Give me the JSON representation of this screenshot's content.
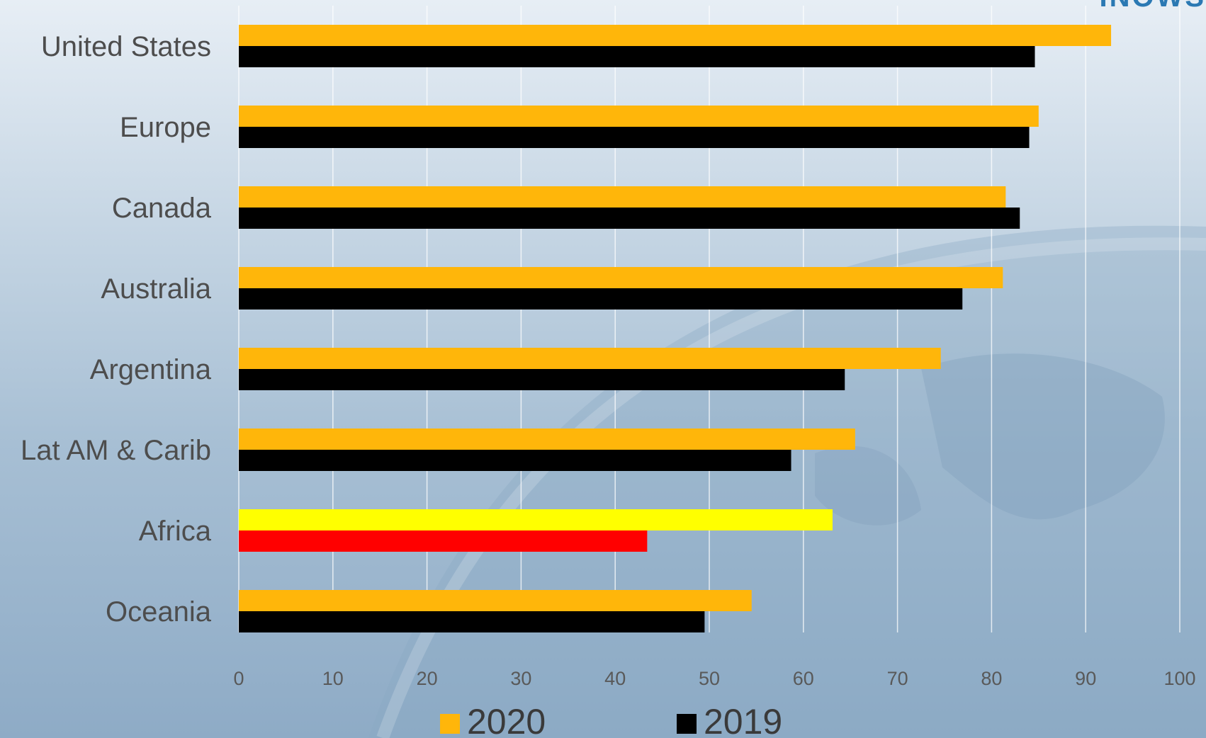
{
  "corner_text": "INOWS",
  "chart_data": {
    "type": "bar",
    "orientation": "horizontal",
    "categories": [
      "United States",
      "Europe",
      "Canada",
      "Australia",
      "Argentina",
      "Lat AM & Carib",
      "Africa",
      "Oceania"
    ],
    "series": [
      {
        "name": "2020",
        "color": "#ffb60a",
        "values": [
          92.7,
          85.0,
          81.5,
          81.2,
          74.6,
          65.5,
          63.1,
          54.5
        ]
      },
      {
        "name": "2019",
        "color": "#000000",
        "values": [
          84.6,
          84.0,
          83.0,
          76.9,
          64.4,
          58.7,
          43.4,
          49.5
        ]
      }
    ],
    "highlight": {
      "category": "Africa",
      "colors": {
        "2020": "#ffff00",
        "2019": "#ff0000"
      }
    },
    "xlim": [
      0,
      100
    ],
    "xticks": [
      "0",
      "10",
      "20",
      "30",
      "40",
      "50",
      "60",
      "70",
      "80",
      "90",
      "100"
    ],
    "grid": true,
    "legend_position": "bottom"
  }
}
